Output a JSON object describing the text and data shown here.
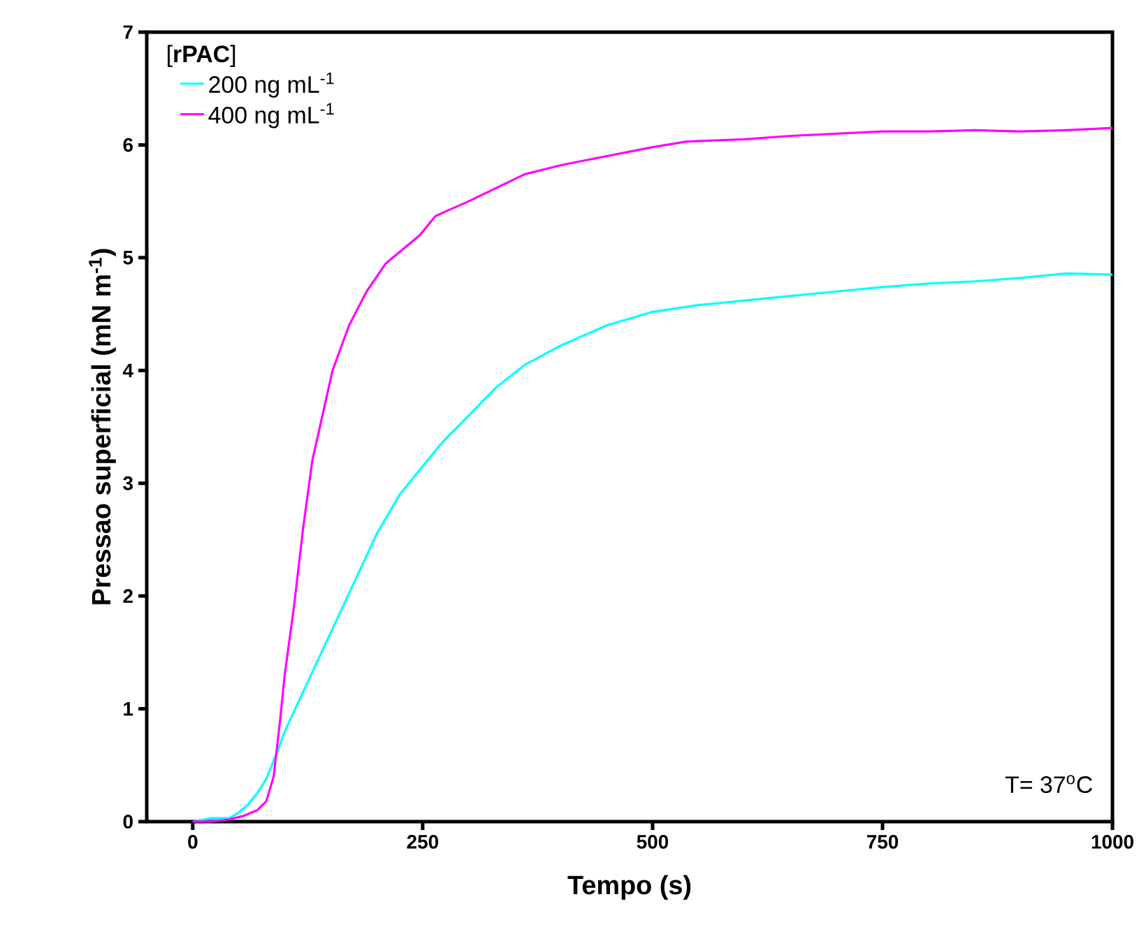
{
  "chart_data": {
    "type": "line",
    "xlabel": "Tempo (s)",
    "ylabel": "Pressao superficial (mN m$^{-1}$)",
    "legend_title": "[**rPAC**]",
    "legend": "top left",
    "annotations": [
      "T= 37$^{o}$C"
    ],
    "xlim": [
      -50,
      1000
    ],
    "ylim": [
      0,
      7
    ],
    "xticks": [
      0,
      250,
      500,
      750,
      1000
    ],
    "yticks": [
      0,
      1,
      2,
      3,
      4,
      5,
      6,
      7
    ],
    "grid": false,
    "marker": "none",
    "line_style": "solid",
    "series": [
      {
        "name": "200 ng mL$^{-1}$",
        "color": "#00ffff",
        "x": [
          0,
          20,
          40,
          50,
          60,
          70,
          80,
          92,
          100,
          120,
          140,
          160,
          180,
          200,
          225,
          250,
          271,
          300,
          330,
          361,
          400,
          450,
          500,
          550,
          600,
          650,
          700,
          750,
          800,
          850,
          900,
          950,
          1000
        ],
        "values": [
          0,
          0.03,
          0.03,
          0.08,
          0.15,
          0.25,
          0.38,
          0.62,
          0.8,
          1.15,
          1.5,
          1.85,
          2.2,
          2.55,
          2.9,
          3.15,
          3.36,
          3.6,
          3.85,
          4.05,
          4.22,
          4.4,
          4.52,
          4.58,
          4.62,
          4.66,
          4.7,
          4.74,
          4.77,
          4.79,
          4.82,
          4.86,
          4.85
        ]
      },
      {
        "name": "400 ng mL$^{-1}$",
        "color": "#ff00ff",
        "x": [
          0,
          20,
          40,
          55,
          70,
          80,
          88,
          95,
          100,
          110,
          120,
          130,
          141,
          152,
          170,
          189,
          210,
          247,
          264,
          300,
          361,
          400,
          450,
          500,
          537,
          600,
          650,
          700,
          750,
          800,
          850,
          900,
          950,
          1000
        ],
        "values": [
          0,
          0,
          0.02,
          0.05,
          0.1,
          0.18,
          0.4,
          0.9,
          1.3,
          1.9,
          2.6,
          3.2,
          3.6,
          4.0,
          4.4,
          4.7,
          4.95,
          5.2,
          5.37,
          5.5,
          5.74,
          5.82,
          5.9,
          5.98,
          6.03,
          6.05,
          6.08,
          6.1,
          6.12,
          6.12,
          6.13,
          6.12,
          6.13,
          6.15
        ]
      }
    ]
  }
}
